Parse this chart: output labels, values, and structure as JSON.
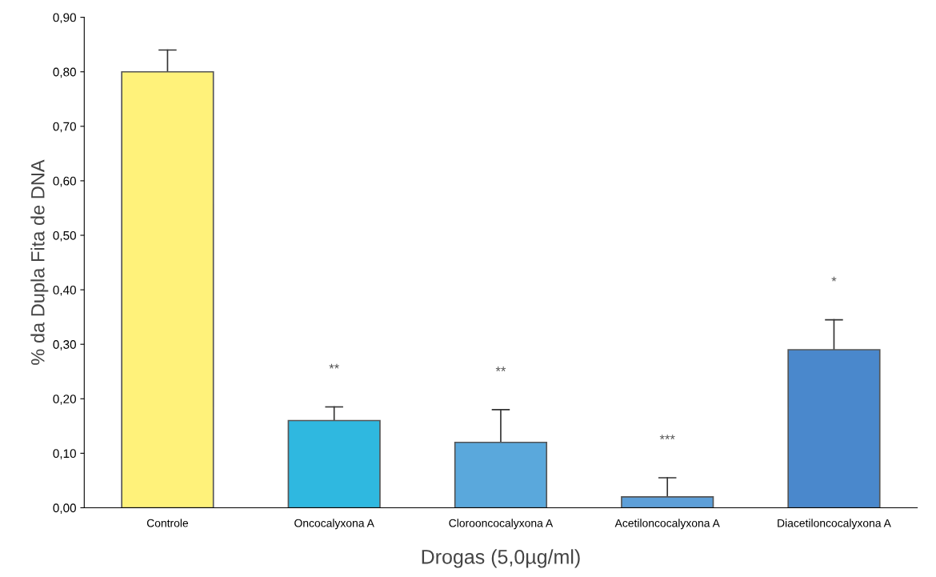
{
  "chart_data": {
    "type": "bar",
    "xlabel": "Drogas (5,0µg/ml)",
    "ylabel": "% da Dupla Fita de DNA",
    "categories": [
      "Controle",
      "Oncocalyxona A",
      "Clorooncocalyxona A",
      "Acetiloncocalyxona A",
      "Diacetiloncocalyxona A"
    ],
    "values": [
      0.8,
      0.16,
      0.12,
      0.02,
      0.29
    ],
    "colors": [
      "#fff27a",
      "#2fb8e0",
      "#5aa8dc",
      "#5d9fd8",
      "#4a88cc"
    ],
    "errors": [
      [
        0.8,
        0.84
      ],
      [
        0.16,
        0.185
      ],
      [
        0.12,
        0.18
      ],
      [
        0.02,
        0.055
      ],
      [
        0.29,
        0.345
      ]
    ],
    "ylim": [
      0,
      0.9
    ],
    "yticks": [
      {
        "value": 0,
        "label": "0,00"
      },
      {
        "value": 0.1,
        "label": "0,10"
      },
      {
        "value": 0.2,
        "label": "0,20"
      },
      {
        "value": 0.3,
        "label": "0,30"
      },
      {
        "value": 0.4,
        "label": "0,40"
      },
      {
        "value": 0.5,
        "label": "0,50"
      },
      {
        "value": 0.6,
        "label": "0,60"
      },
      {
        "value": 0.7,
        "label": "0,70"
      },
      {
        "value": 0.8,
        "label": "0,80"
      },
      {
        "value": 0.9,
        "label": "0,90"
      }
    ],
    "annotations": [
      {
        "text": "**",
        "x": "Oncocalyxona A",
        "y": 0.185
      },
      {
        "text": "**",
        "x": "Clorooncocalyxona A",
        "y": 0.18
      },
      {
        "text": "***",
        "x": "Acetiloncocalyxona A",
        "y": 0.055
      },
      {
        "text": "*",
        "x": "Diacetiloncocalyxona A",
        "y": 0.345
      }
    ],
    "grid": false,
    "legend": false
  }
}
